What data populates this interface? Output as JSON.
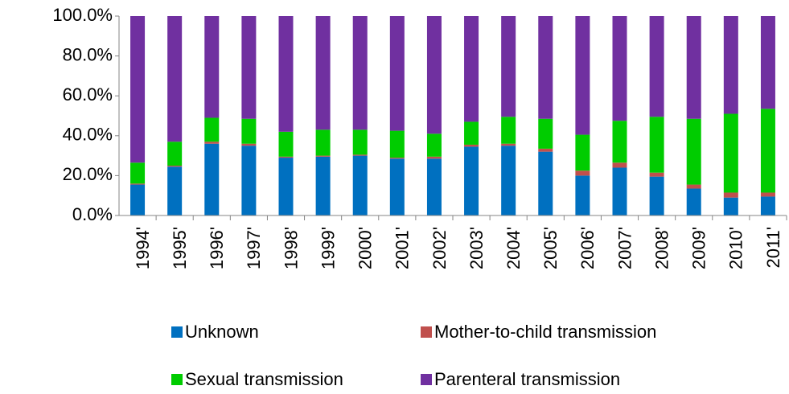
{
  "chart_data": {
    "type": "stacked_bar_100",
    "categories": [
      "1994'",
      "1995'",
      "1996'",
      "1997'",
      "1998'",
      "1999'",
      "2000'",
      "2001'",
      "2002'",
      "2003'",
      "2004'",
      "2005'",
      "2006'",
      "2007'",
      "2008'",
      "2009'",
      "2010'",
      "2011'"
    ],
    "series": [
      {
        "name": "Unknown",
        "color": "#0070c0",
        "values": [
          15.5,
          24.5,
          36,
          35,
          29,
          29.5,
          30,
          28.5,
          28.5,
          34.5,
          35,
          32,
          20,
          24,
          19.5,
          13.5,
          9,
          9.5
        ]
      },
      {
        "name": "Mother-to-child transmission",
        "color": "#c0504d",
        "values": [
          0.5,
          0.5,
          1,
          1,
          0.5,
          0.5,
          0.5,
          0.5,
          1,
          1,
          1,
          1.5,
          2.5,
          2.5,
          2,
          2,
          2.5,
          2
        ]
      },
      {
        "name": "Sexual transmission",
        "color": "#00cc00",
        "values": [
          10.5,
          12,
          12,
          12.5,
          12.5,
          13,
          12.5,
          13.5,
          11.5,
          11.5,
          13.5,
          15,
          18,
          21,
          28,
          33,
          39.5,
          42
        ]
      },
      {
        "name": "Parenteral transmission",
        "color": "#7030a0",
        "values": [
          73.5,
          63,
          51,
          51.5,
          58,
          57,
          57,
          57.5,
          59,
          53,
          50.5,
          51.5,
          59.5,
          52.5,
          50.5,
          51.5,
          49,
          46.5
        ]
      }
    ],
    "ylim": [
      0,
      100
    ],
    "yticks": [
      {
        "value": 0,
        "label": "0.0%"
      },
      {
        "value": 20,
        "label": "20.0%"
      },
      {
        "value": 40,
        "label": "40.0%"
      },
      {
        "value": 60,
        "label": "60.0%"
      },
      {
        "value": 80,
        "label": "80.0%"
      },
      {
        "value": 100,
        "label": "100.0%"
      }
    ],
    "legend": "bottom"
  }
}
